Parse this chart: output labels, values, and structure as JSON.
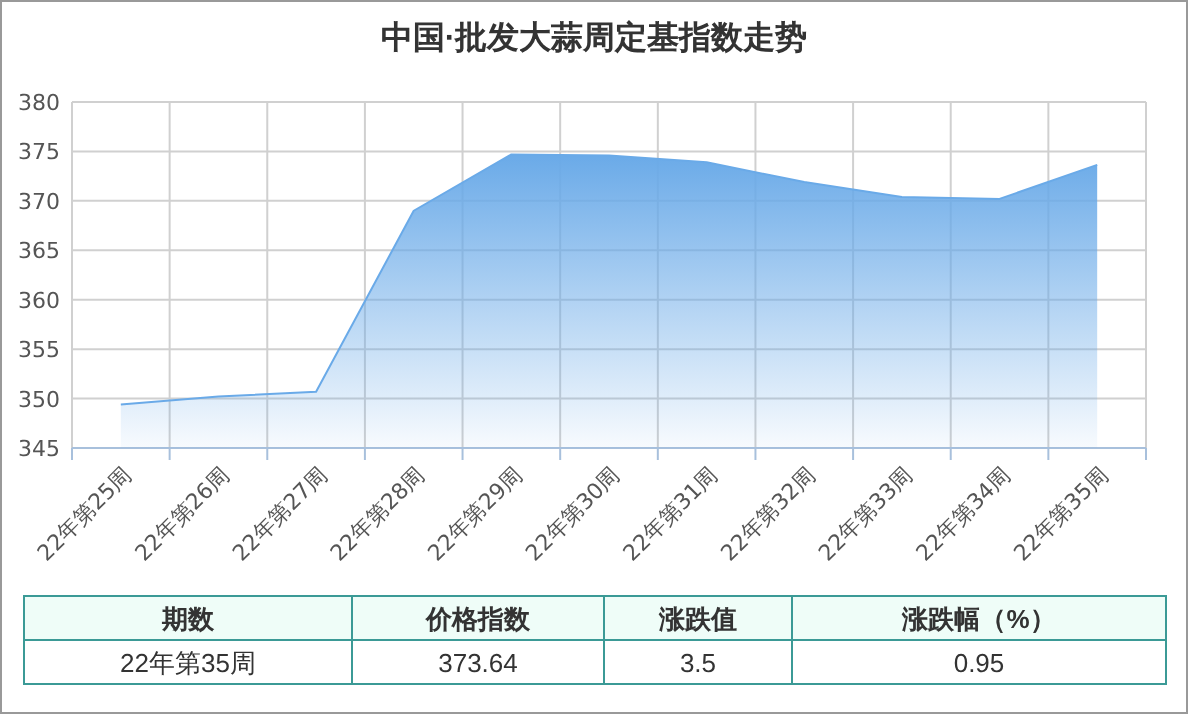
{
  "chart_data": {
    "type": "area",
    "title": "中国·批发大蒜周定基指数走势",
    "categories": [
      "22年第25周",
      "22年第26周",
      "22年第27周",
      "22年第28周",
      "22年第29周",
      "22年第30周",
      "22年第31周",
      "22年第32周",
      "22年第33周",
      "22年第34周",
      "22年第35周"
    ],
    "series": [
      {
        "color": "#6aaae8",
        "values": [
          349.4,
          350.2,
          350.7,
          369.0,
          374.7,
          374.6,
          373.9,
          371.9,
          370.4,
          370.2,
          373.64
        ]
      }
    ],
    "ylim": [
      345,
      380
    ],
    "yticks": [
      345,
      350,
      355,
      360,
      365,
      370,
      375,
      380
    ],
    "grid": true,
    "annotations": [
      "期数",
      "价格指数",
      "涨跌值",
      "涨跌幅（%）",
      "22年第35周",
      "373.64",
      "3.5",
      "0.95"
    ]
  }
}
